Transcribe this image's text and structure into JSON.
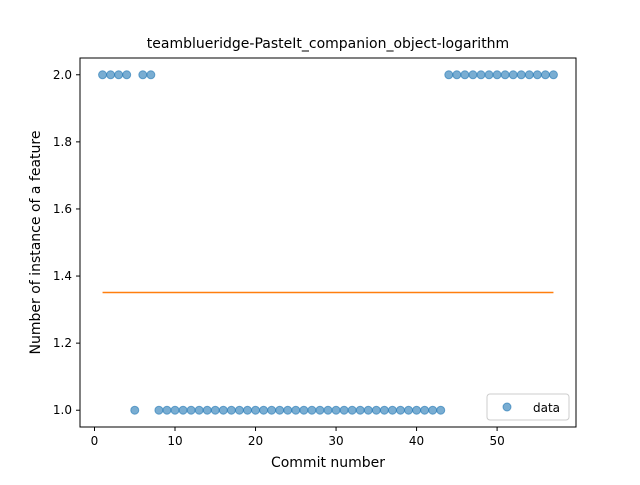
{
  "chart_data": {
    "type": "scatter",
    "title": "teamblueridge-PasteIt_companion_object-logarithm",
    "xlabel": "Commit number",
    "ylabel": "Number of instance of a feature",
    "xlim": [
      -1.8,
      59.8
    ],
    "ylim": [
      0.95,
      2.05
    ],
    "xticks": [
      0,
      10,
      20,
      30,
      40,
      50
    ],
    "yticks": [
      1.0,
      1.2,
      1.4,
      1.6,
      1.8,
      2.0
    ],
    "xtick_labels": [
      "0",
      "10",
      "20",
      "30",
      "40",
      "50"
    ],
    "ytick_labels": [
      "1.0",
      "1.2",
      "1.4",
      "1.6",
      "1.8",
      "2.0"
    ],
    "grid": false,
    "legend_position": "lower-right",
    "series": [
      {
        "name": "data",
        "kind": "scatter",
        "color": "#1f77b4",
        "x": [
          1,
          2,
          3,
          4,
          5,
          6,
          7,
          8,
          9,
          10,
          11,
          12,
          13,
          14,
          15,
          16,
          17,
          18,
          19,
          20,
          21,
          22,
          23,
          24,
          25,
          26,
          27,
          28,
          29,
          30,
          31,
          32,
          33,
          34,
          35,
          36,
          37,
          38,
          39,
          40,
          41,
          42,
          43,
          44,
          45,
          46,
          47,
          48,
          49,
          50,
          51,
          52,
          53,
          54,
          55,
          56,
          57
        ],
        "y": [
          2,
          2,
          2,
          2,
          1,
          2,
          2,
          1,
          1,
          1,
          1,
          1,
          1,
          1,
          1,
          1,
          1,
          1,
          1,
          1,
          1,
          1,
          1,
          1,
          1,
          1,
          1,
          1,
          1,
          1,
          1,
          1,
          1,
          1,
          1,
          1,
          1,
          1,
          1,
          1,
          1,
          1,
          1,
          2,
          2,
          2,
          2,
          2,
          2,
          2,
          2,
          2,
          2,
          2,
          2,
          2,
          2
        ]
      },
      {
        "kind": "line",
        "color": "#ff7f0e",
        "x": [
          1,
          57
        ],
        "y": [
          1.351,
          1.351
        ]
      }
    ]
  }
}
